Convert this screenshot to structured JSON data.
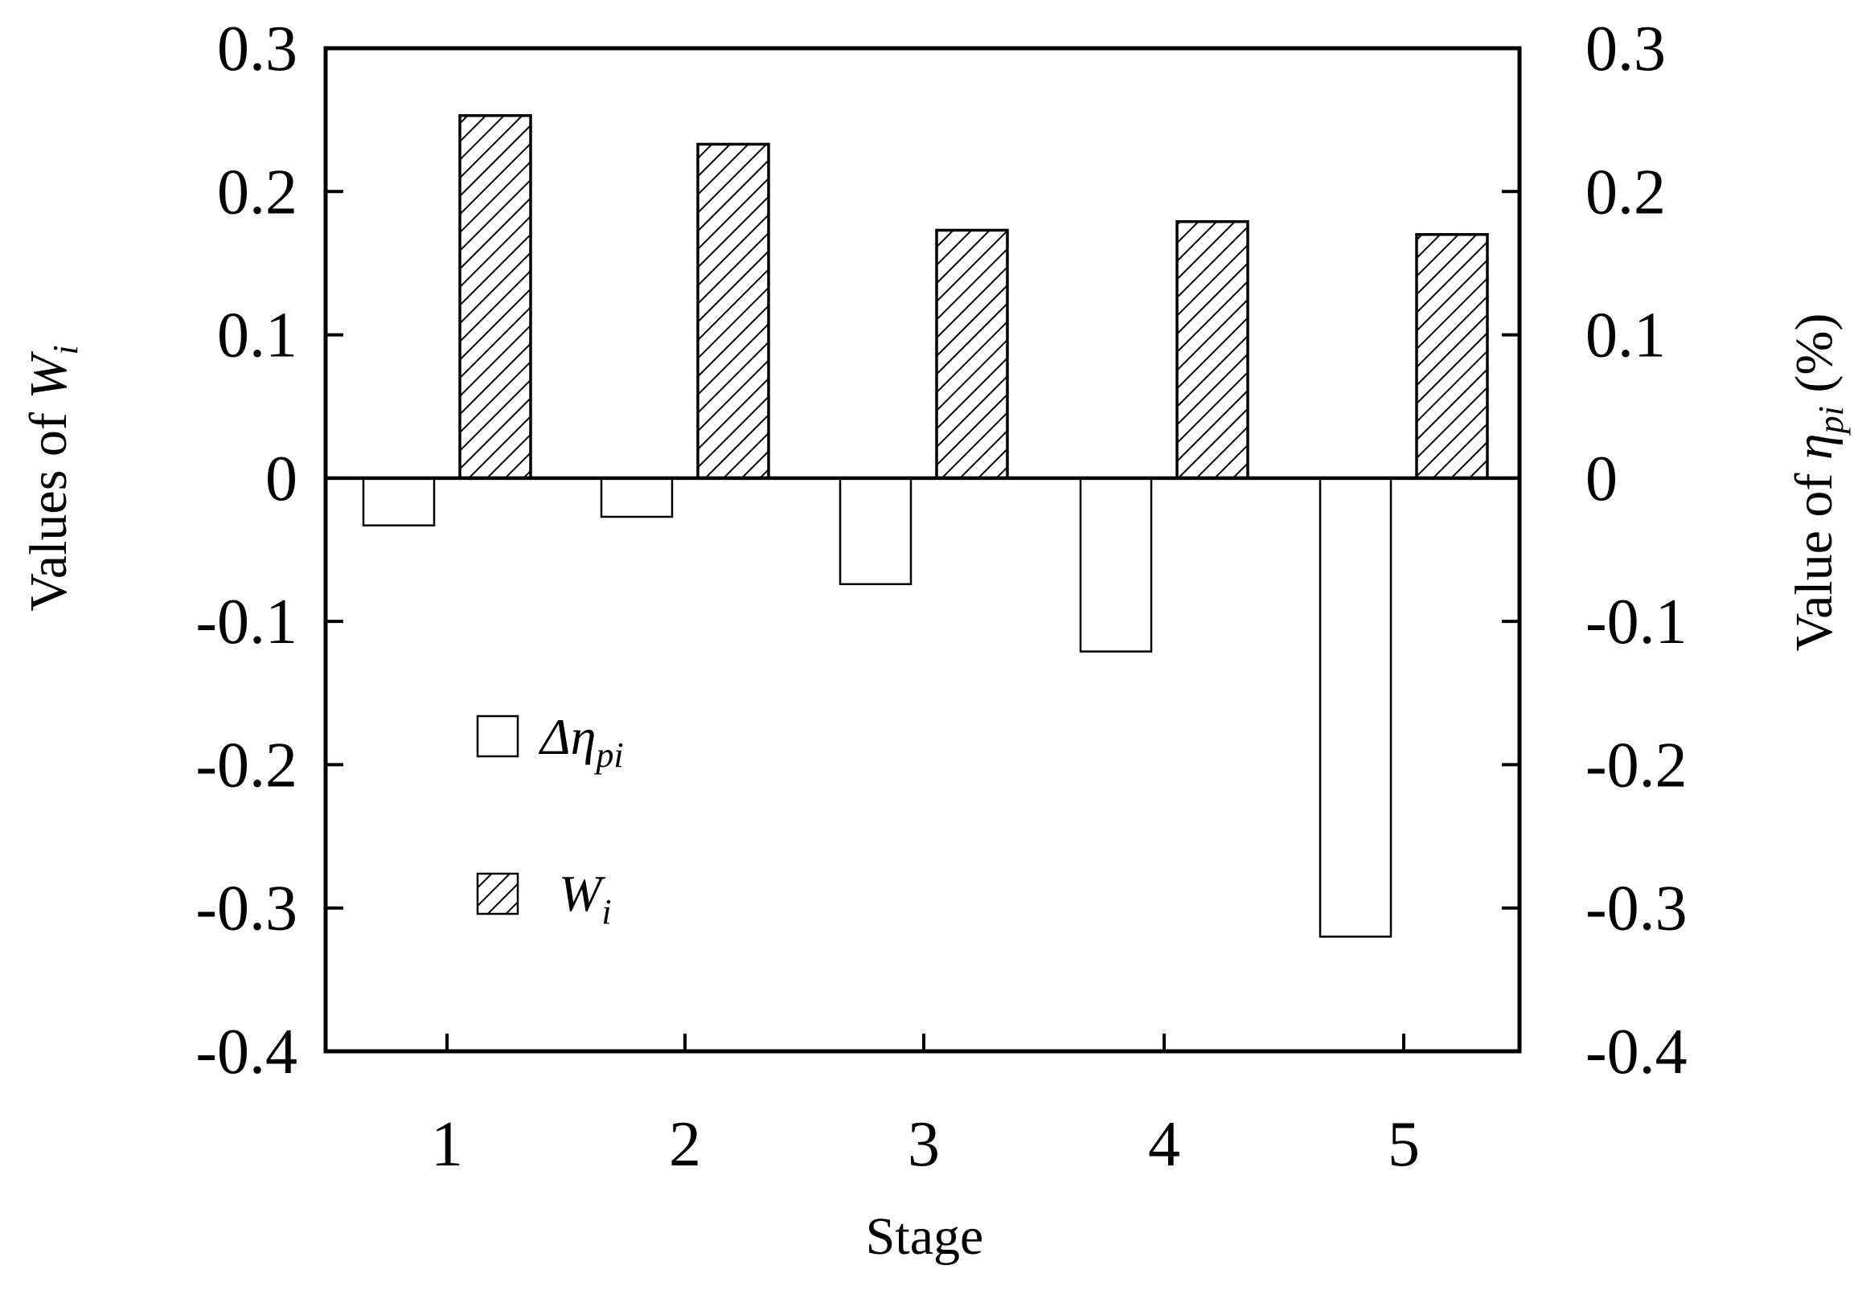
{
  "chart_data": {
    "type": "bar",
    "categories": [
      "1",
      "2",
      "3",
      "4",
      "5"
    ],
    "series": [
      {
        "name": "Δη_pi",
        "legend_main": "Δη",
        "legend_sub": "pi",
        "values": [
          -0.033,
          -0.027,
          -0.074,
          -0.121,
          -0.32
        ],
        "fill": "#ffffff",
        "pattern": "none",
        "axis": "right"
      },
      {
        "name": "W_i",
        "legend_main": "W",
        "legend_sub": "i",
        "values": [
          0.253,
          0.233,
          0.173,
          0.179,
          0.17
        ],
        "fill": "#ffffff",
        "pattern": "diagonal-hatch",
        "axis": "left"
      }
    ],
    "xlabel": "Stage",
    "ylabel_left": {
      "prefix": "Values of ",
      "symbol": "W",
      "sub": "i"
    },
    "ylabel_right": {
      "prefix": "Value of ",
      "symbol": "η",
      "sub": "pi",
      "suffix": " (%)"
    },
    "ylim": [
      -0.4,
      0.3
    ],
    "yticks": [
      -0.4,
      -0.3,
      -0.2,
      -0.1,
      0,
      0.1,
      0.2,
      0.3
    ],
    "ytick_labels": [
      "-0.4",
      "-0.3",
      "-0.2",
      "-0.1",
      "0",
      "0.1",
      "0.2",
      "0.3"
    ],
    "ylim_right": [
      -0.4,
      0.3
    ],
    "yticks_right_labels": [
      "-0.4",
      "-0.3",
      "-0.2",
      "-0.1",
      "0",
      "0.1",
      "0.2",
      "0.3"
    ],
    "grid": false,
    "zero_line": true,
    "legend_position": "lower-left",
    "colors": {
      "axis": "#000000",
      "bar_stroke": "#000000",
      "hatch": "#000000",
      "background": "#ffffff"
    }
  }
}
